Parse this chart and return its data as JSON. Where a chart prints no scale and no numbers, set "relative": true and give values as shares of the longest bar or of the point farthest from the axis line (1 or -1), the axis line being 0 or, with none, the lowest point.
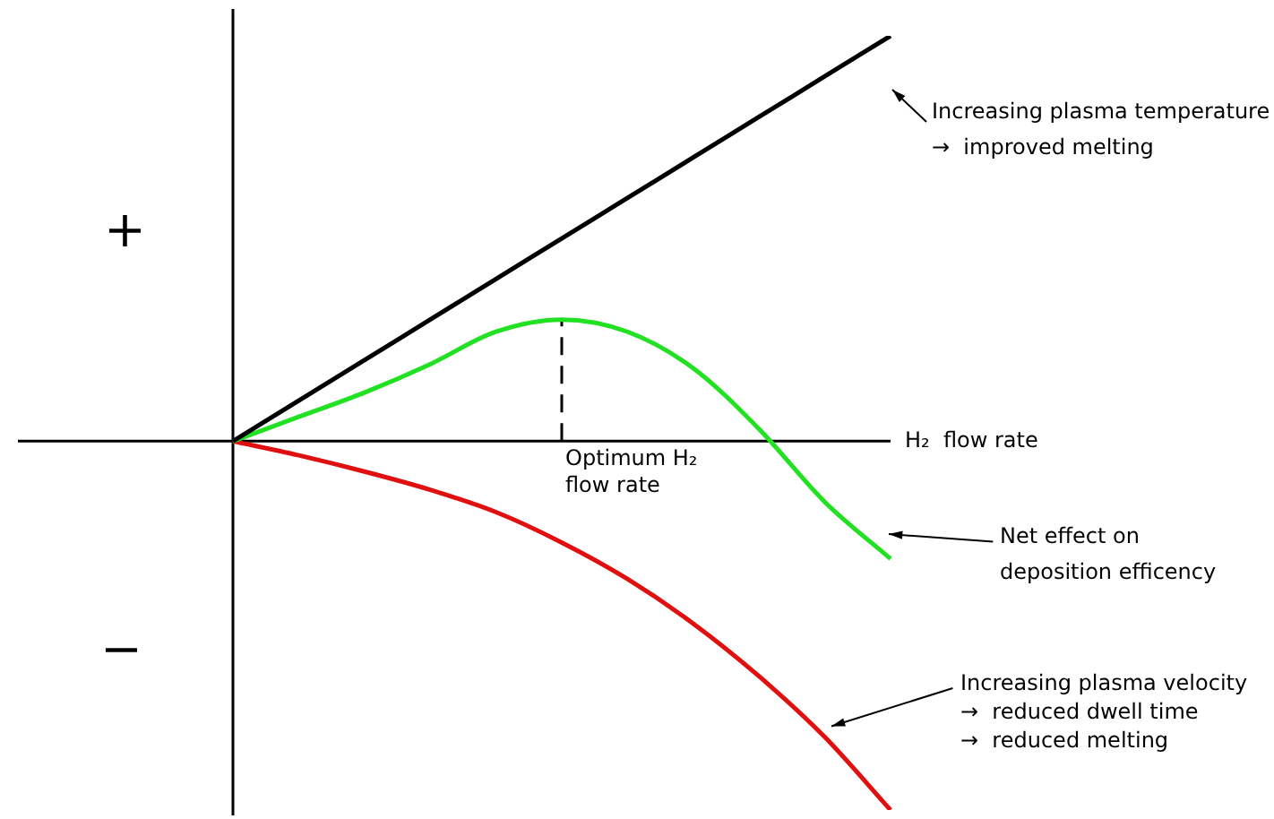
{
  "chart_data": {
    "type": "line",
    "relative": true,
    "xlabel": "H₂  flow rate",
    "categories": [
      null,
      null,
      null,
      null,
      null,
      null,
      null,
      null,
      null,
      null,
      null
    ],
    "series": [
      {
        "color": "#000000",
        "values": [
          0,
          0.1,
          0.2,
          0.3,
          0.4,
          0.5,
          0.6,
          0.7,
          0.8,
          0.9,
          1
        ]
      },
      {
        "color": "#22e022",
        "values": [
          0,
          0.06,
          0.12,
          0.19,
          0.27,
          0.3,
          0.27,
          0.18,
          0.03,
          -0.15,
          -0.29
        ]
      },
      {
        "color": "#e01010",
        "values": [
          0,
          -0.035,
          -0.075,
          -0.12,
          -0.175,
          -0.25,
          -0.34,
          -0.45,
          -0.58,
          -0.73,
          -0.91
        ]
      }
    ],
    "annotations": [
      "+",
      "−",
      "Optimum H₂\nflow rate",
      "Increasing plasma temperature\n→  improved melting",
      "Net effect on\ndeposition efficency",
      "Increasing plasma velocity\n→  reduced dwell time\n→  reduced melting"
    ],
    "marker": "none",
    "line_style": "solid"
  }
}
